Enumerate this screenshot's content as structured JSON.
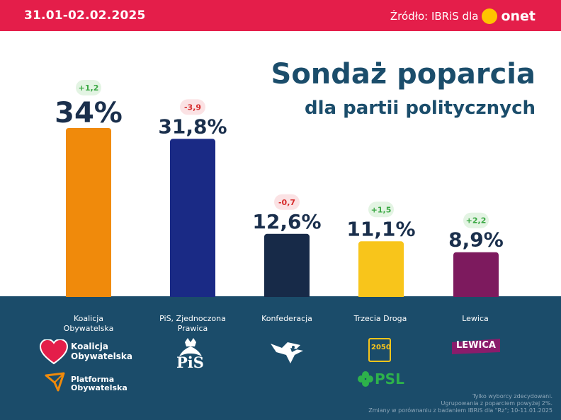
{
  "header": {
    "date_range": "31.01-02.02.2025",
    "source_label": "Źródło: IBRiS dla",
    "source_brand": "onet",
    "brand_color": "#ffc400"
  },
  "title": {
    "line1": "Sondaż poparcia",
    "line2": "dla partii politycznych"
  },
  "chart_data": {
    "type": "bar",
    "title": "Sondaż poparcia dla partii politycznych",
    "xlabel": "",
    "ylabel": "",
    "unit": "%",
    "categories": [
      "Koalicja Obywatelska",
      "PiS, Zjednoczona Prawica",
      "Konfederacja",
      "Trzecia Droga",
      "Lewica"
    ],
    "values": [
      34,
      31.8,
      12.6,
      11.1,
      8.9
    ],
    "value_labels": [
      "34%",
      "31,8%",
      "12,6%",
      "11,1%",
      "8,9%"
    ],
    "changes": [
      "+1,2",
      "-3,9",
      "-0,7",
      "+1,5",
      "+2,2"
    ],
    "colors": [
      "#f08a0b",
      "#1a2a85",
      "#172a48",
      "#f8c51b",
      "#7d1a5e"
    ],
    "ylim": [
      0,
      34
    ],
    "grid": false
  },
  "parties": [
    {
      "label_lines": [
        "Koalicja",
        "Obywatelska"
      ]
    },
    {
      "label_lines": [
        "PiS, Zjednoczona",
        "Prawica"
      ]
    },
    {
      "label_lines": [
        "Konfederacja"
      ]
    },
    {
      "label_lines": [
        "Trzecia Droga"
      ]
    },
    {
      "label_lines": [
        "Lewica"
      ]
    }
  ],
  "logos": {
    "ko": [
      "Koalicja",
      "Obywatelska"
    ],
    "po": [
      "Platforma",
      "Obywatelska"
    ],
    "pis": "PiS",
    "td": "2050",
    "psl": "PSL",
    "lewica": "LEWICA"
  },
  "notes": [
    "Tylko wyborcy zdecydowani.",
    "Ugrupowania z poparciem powyżej 2%.",
    "Zmiany w porównaniu z badaniem IBRiS dla \"Rz\"; 10-11.01.2025"
  ]
}
